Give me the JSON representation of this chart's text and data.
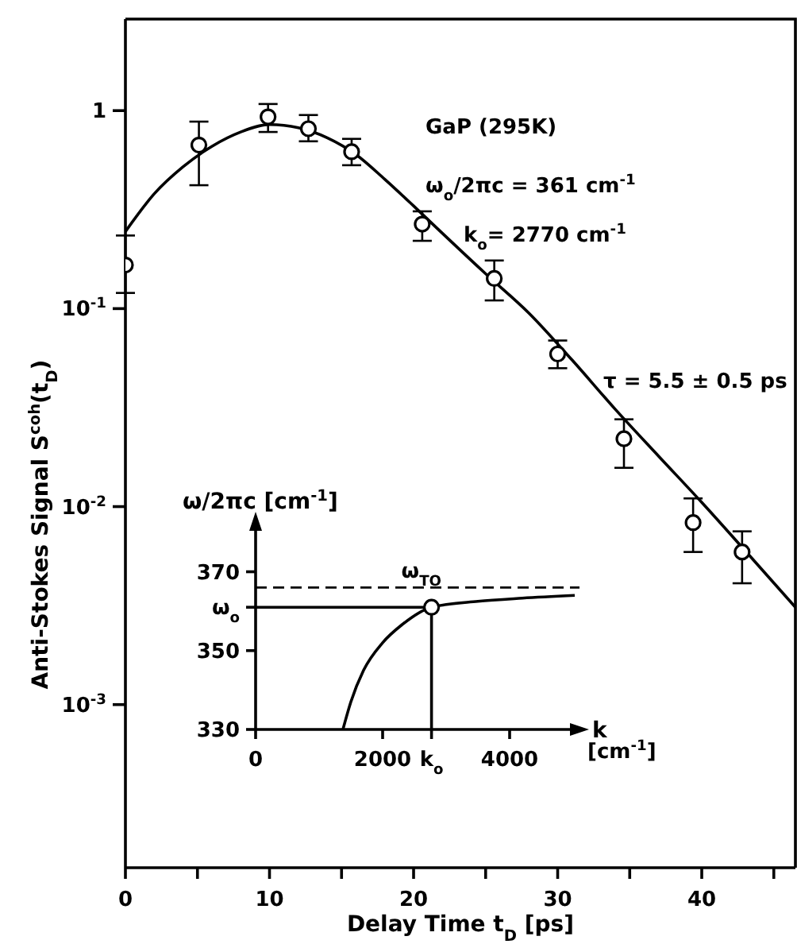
{
  "chart_data": [
    {
      "type": "scatter",
      "xlabel": "Delay Time t$_{D}$ [ps]",
      "ylabel": "Anti-Stokes Signal S$^{coh}$(t$_{D}$)",
      "annotations": [
        "GaP (295K)",
        "ω$_{o}$/2πc = 361 cm$^{-1}$",
        "k$_{o}$= 2770 cm$^{-1}$",
        "τ = 5.5 ± 0.5 ps"
      ],
      "xlim": [
        0,
        46.5
      ],
      "xticks": [
        0,
        {
          "value": 5,
          "label": null
        },
        10,
        {
          "value": 15,
          "label": null
        },
        20,
        {
          "value": 25,
          "label": null
        },
        30,
        {
          "value": 35,
          "label": null
        },
        40,
        {
          "value": 45,
          "label": null
        }
      ],
      "ylim": [
        0.00015,
        2.9
      ],
      "yticks": [
        {
          "value": 0.001,
          "label": "10$^{-3}$"
        },
        {
          "value": 0.01,
          "label": "10$^{-2}$"
        },
        {
          "value": 0.1,
          "label": "10$^{-1}$"
        },
        1
      ],
      "log": "y",
      "grid": false,
      "legend": false,
      "series": [
        {
          "marker": "circle",
          "color": "#000000",
          "x": [
            0,
            5.1,
            9.9,
            12.7,
            15.7,
            20.6,
            25.6,
            30.0,
            34.6,
            39.4,
            42.8
          ],
          "values": [
            0.166,
            0.67,
            0.93,
            0.81,
            0.62,
            0.267,
            0.142,
            0.059,
            0.022,
            0.0083,
            0.0059
          ],
          "errors": [
            [
              0.12,
              0.234
            ],
            [
              0.42,
              0.88
            ],
            [
              0.78,
              1.08
            ],
            [
              0.7,
              0.95
            ],
            [
              0.53,
              0.72
            ],
            [
              0.22,
              0.31
            ],
            [
              0.11,
              0.175
            ],
            [
              0.05,
              0.069
            ],
            [
              0.0157,
              0.0276
            ],
            [
              0.0059,
              0.011
            ],
            [
              0.0041,
              0.0075
            ]
          ]
        },
        {
          "type": "line",
          "marker": "none",
          "color": "#000000",
          "x": [
            0,
            2,
            4,
            6,
            8,
            10,
            12,
            14,
            16,
            18,
            20,
            22,
            25,
            28,
            31,
            34,
            37,
            40,
            43,
            46.5
          ],
          "values": [
            0.245,
            0.38,
            0.52,
            0.66,
            0.78,
            0.85,
            0.82,
            0.73,
            0.6,
            0.45,
            0.33,
            0.24,
            0.15,
            0.095,
            0.055,
            0.031,
            0.018,
            0.0105,
            0.006,
            0.0031
          ]
        }
      ]
    },
    {
      "type": "line",
      "ylabel": "ω/2πc [cm$^{-1}$]",
      "xlabel": "[cm$^{-1}$]",
      "annotations": [
        "k"
      ],
      "xlim": [
        0,
        5100
      ],
      "xticks": [
        0,
        2000,
        {
          "value": 2770,
          "label": "k$_{o}$"
        },
        4000
      ],
      "ylim": [
        330,
        382
      ],
      "yticks": [
        330,
        350,
        {
          "value": 361,
          "label": "ω$_{o}$"
        },
        370
      ],
      "grid": false,
      "legend": false,
      "ref_lines": [
        {
          "axis": "y",
          "value": 366,
          "label": "ω$_{TO}$",
          "line_style": "dashed",
          "color": "#000000"
        }
      ],
      "series": [
        {
          "marker": "none",
          "color": "#000000",
          "x": [
            1375,
            1500,
            1700,
            2000,
            2300,
            2770,
            3500,
            4200,
            5025
          ],
          "values": [
            330,
            337,
            345,
            352,
            356.5,
            361,
            362.5,
            363.3,
            364
          ]
        },
        {
          "marker": "none",
          "color": "#000000",
          "x": [
            0,
            2770,
            2770
          ],
          "values": [
            361,
            361,
            330
          ]
        },
        {
          "type": "scatter",
          "marker": "circle",
          "color": "#000000",
          "x": [
            2770
          ],
          "values": [
            361
          ]
        }
      ]
    }
  ]
}
